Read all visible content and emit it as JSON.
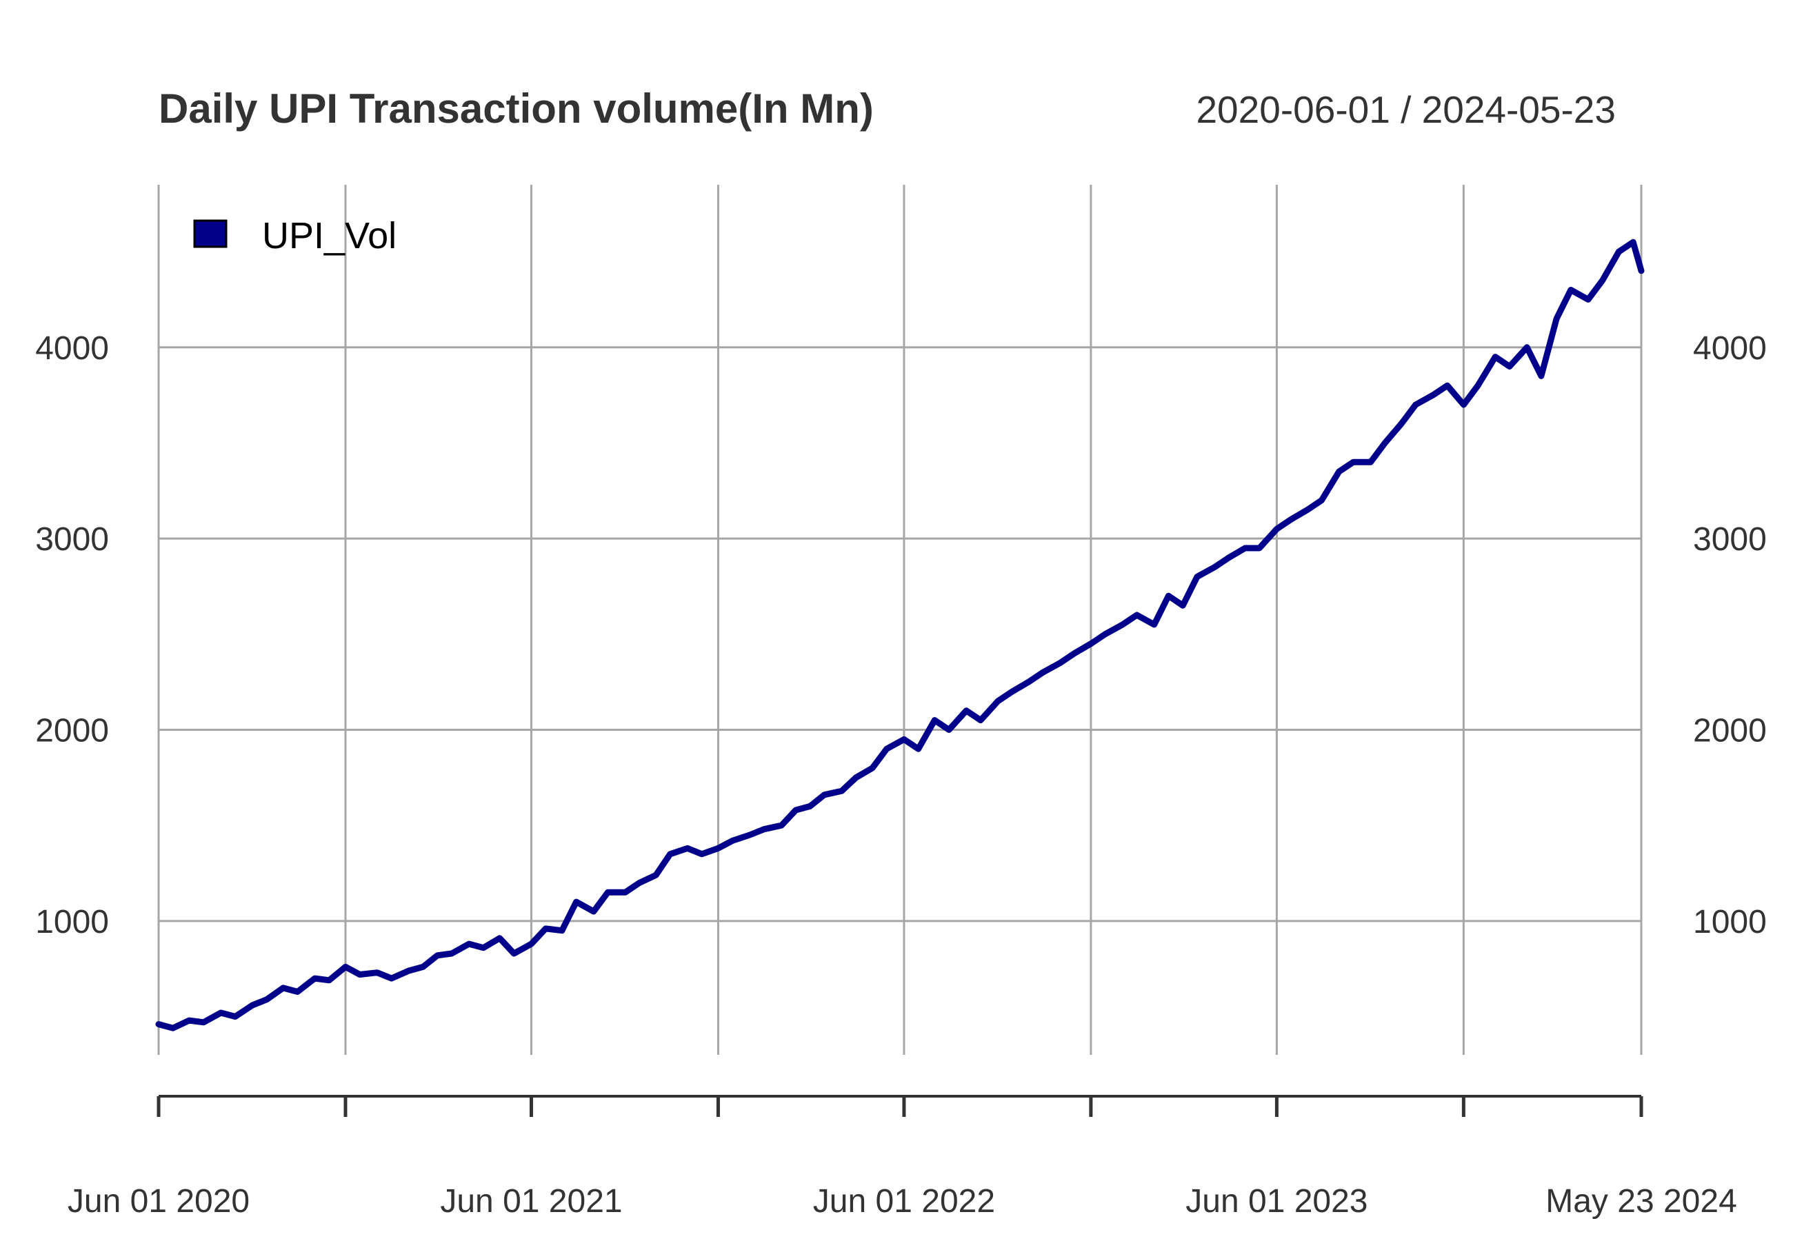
{
  "chart_data": {
    "type": "line",
    "title": "Daily UPI Transaction volume(In Mn)",
    "date_range": "2020-06-01 / 2024-05-23",
    "xlabel": "",
    "ylabel": "",
    "series_color": "#00008b",
    "grid": true,
    "legend_position": "top-left",
    "x_start": "2020-06-01",
    "x_end": "2024-05-23",
    "ylim": [
      300,
      4850
    ],
    "yticks": [
      {
        "value": 1000,
        "label": "1000"
      },
      {
        "value": 2000,
        "label": "2000"
      },
      {
        "value": 3000,
        "label": "3000"
      },
      {
        "value": 4000,
        "label": "4000"
      }
    ],
    "xticks": [
      {
        "date": "2020-06-01",
        "label": "Jun 01 2020"
      },
      {
        "date": "2020-12-01",
        "label": ""
      },
      {
        "date": "2021-06-01",
        "label": "Jun 01 2021"
      },
      {
        "date": "2021-12-01",
        "label": ""
      },
      {
        "date": "2022-06-01",
        "label": "Jun 01 2022"
      },
      {
        "date": "2022-12-01",
        "label": ""
      },
      {
        "date": "2023-06-01",
        "label": "Jun 01 2023"
      },
      {
        "date": "2023-12-01",
        "label": ""
      },
      {
        "date": "2024-05-23",
        "label": "May 23 2024"
      }
    ],
    "series": [
      {
        "name": "UPI_Vol",
        "x": [
          "2020-06-01",
          "2020-06-15",
          "2020-07-01",
          "2020-07-15",
          "2020-08-01",
          "2020-08-15",
          "2020-09-01",
          "2020-09-15",
          "2020-10-01",
          "2020-10-15",
          "2020-11-01",
          "2020-11-15",
          "2020-12-01",
          "2020-12-15",
          "2021-01-01",
          "2021-01-15",
          "2021-02-01",
          "2021-02-15",
          "2021-03-01",
          "2021-03-15",
          "2021-04-01",
          "2021-04-15",
          "2021-05-01",
          "2021-05-15",
          "2021-06-01",
          "2021-06-15",
          "2021-07-01",
          "2021-07-15",
          "2021-08-01",
          "2021-08-15",
          "2021-09-01",
          "2021-09-15",
          "2021-10-01",
          "2021-10-15",
          "2021-11-01",
          "2021-11-15",
          "2021-12-01",
          "2021-12-15",
          "2022-01-01",
          "2022-01-15",
          "2022-02-01",
          "2022-02-15",
          "2022-03-01",
          "2022-03-15",
          "2022-04-01",
          "2022-04-15",
          "2022-05-01",
          "2022-05-15",
          "2022-06-01",
          "2022-06-15",
          "2022-07-01",
          "2022-07-15",
          "2022-08-01",
          "2022-08-15",
          "2022-09-01",
          "2022-09-15",
          "2022-10-01",
          "2022-10-15",
          "2022-11-01",
          "2022-11-15",
          "2022-12-01",
          "2022-12-15",
          "2023-01-01",
          "2023-01-15",
          "2023-02-01",
          "2023-02-15",
          "2023-03-01",
          "2023-03-15",
          "2023-04-01",
          "2023-04-15",
          "2023-05-01",
          "2023-05-15",
          "2023-06-01",
          "2023-06-15",
          "2023-07-01",
          "2023-07-15",
          "2023-08-01",
          "2023-08-15",
          "2023-09-01",
          "2023-09-15",
          "2023-10-01",
          "2023-10-15",
          "2023-11-01",
          "2023-11-15",
          "2023-12-01",
          "2023-12-15",
          "2024-01-01",
          "2024-01-15",
          "2024-02-01",
          "2024-02-15",
          "2024-03-01",
          "2024-03-15",
          "2024-04-01",
          "2024-04-15",
          "2024-05-01",
          "2024-05-15",
          "2024-05-23"
        ],
        "values": [
          460,
          440,
          480,
          470,
          520,
          500,
          560,
          590,
          650,
          630,
          700,
          690,
          760,
          720,
          730,
          700,
          740,
          760,
          820,
          830,
          880,
          860,
          910,
          830,
          880,
          960,
          950,
          1100,
          1050,
          1150,
          1150,
          1200,
          1240,
          1350,
          1380,
          1350,
          1380,
          1420,
          1450,
          1480,
          1500,
          1580,
          1600,
          1660,
          1680,
          1750,
          1800,
          1900,
          1950,
          1900,
          2050,
          2000,
          2100,
          2050,
          2150,
          2200,
          2250,
          2300,
          2350,
          2400,
          2450,
          2500,
          2550,
          2600,
          2550,
          2700,
          2650,
          2800,
          2850,
          2900,
          2950,
          2950,
          3050,
          3100,
          3150,
          3200,
          3350,
          3400,
          3400,
          3500,
          3600,
          3700,
          3750,
          3800,
          3700,
          3800,
          3950,
          3900,
          4000,
          3850,
          4150,
          4300,
          4250,
          4350,
          4500,
          4550,
          4400
        ]
      }
    ]
  }
}
